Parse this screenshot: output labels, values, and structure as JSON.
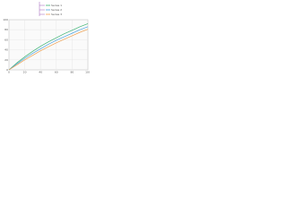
{
  "chart_data": {
    "type": "line",
    "x": [
      0,
      10,
      20,
      30,
      40,
      50,
      60,
      70,
      80,
      90,
      100
    ],
    "series": [
      {
        "name": "Series 1",
        "color": "#3cb371",
        "values": [
          0,
          14,
          26,
          37,
          47,
          56,
          64,
          72,
          79,
          86,
          92
        ]
      },
      {
        "name": "Series 2",
        "color": "#4aa3df",
        "values": [
          0,
          12,
          23,
          33,
          42,
          51,
          59,
          66,
          73,
          80,
          86
        ]
      },
      {
        "name": "Series 3",
        "color": "#f0a050",
        "values": [
          0,
          10,
          20,
          29,
          38,
          46,
          54,
          61,
          68,
          75,
          81
        ]
      }
    ],
    "xlim": [
      0,
      100
    ],
    "xticks": [
      0,
      20,
      40,
      60,
      80,
      100
    ],
    "ylim": [
      0,
      100
    ],
    "yticks": [
      0,
      20,
      40,
      60,
      80,
      100
    ],
    "grid": true
  }
}
